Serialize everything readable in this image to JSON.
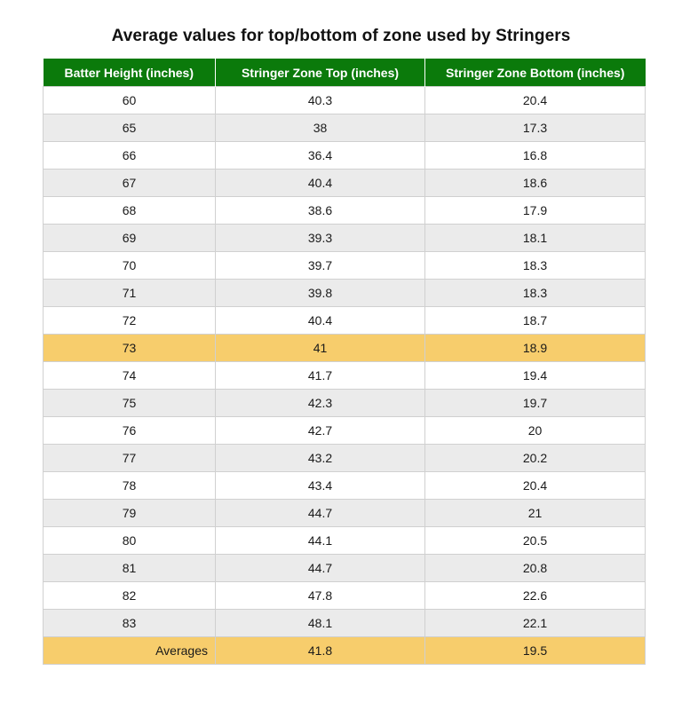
{
  "title": "Average values for top/bottom of zone used by Stringers",
  "colors": {
    "header_bg": "#0b7a0b",
    "header_text": "#ffffff",
    "stripe": "#ebebeb",
    "highlight": "#f7cd6c"
  },
  "chart_data": {
    "type": "table",
    "title": "Average values for top/bottom of zone used by Stringers",
    "columns": [
      "Batter Height (inches)",
      "Stringer Zone Top (inches)",
      "Stringer Zone Bottom (inches)"
    ],
    "rows": [
      [
        "60",
        "40.3",
        "20.4"
      ],
      [
        "65",
        "38",
        "17.3"
      ],
      [
        "66",
        "36.4",
        "16.8"
      ],
      [
        "67",
        "40.4",
        "18.6"
      ],
      [
        "68",
        "38.6",
        "17.9"
      ],
      [
        "69",
        "39.3",
        "18.1"
      ],
      [
        "70",
        "39.7",
        "18.3"
      ],
      [
        "71",
        "39.8",
        "18.3"
      ],
      [
        "72",
        "40.4",
        "18.7"
      ],
      [
        "73",
        "41",
        "18.9"
      ],
      [
        "74",
        "41.7",
        "19.4"
      ],
      [
        "75",
        "42.3",
        "19.7"
      ],
      [
        "76",
        "42.7",
        "20"
      ],
      [
        "77",
        "43.2",
        "20.2"
      ],
      [
        "78",
        "43.4",
        "20.4"
      ],
      [
        "79",
        "44.7",
        "21"
      ],
      [
        "80",
        "44.1",
        "20.5"
      ],
      [
        "81",
        "44.7",
        "20.8"
      ],
      [
        "82",
        "47.8",
        "22.6"
      ],
      [
        "83",
        "48.1",
        "22.1"
      ]
    ],
    "highlighted_row": "73",
    "averages": {
      "label": "Averages",
      "top": "41.8",
      "bottom": "19.5"
    }
  }
}
